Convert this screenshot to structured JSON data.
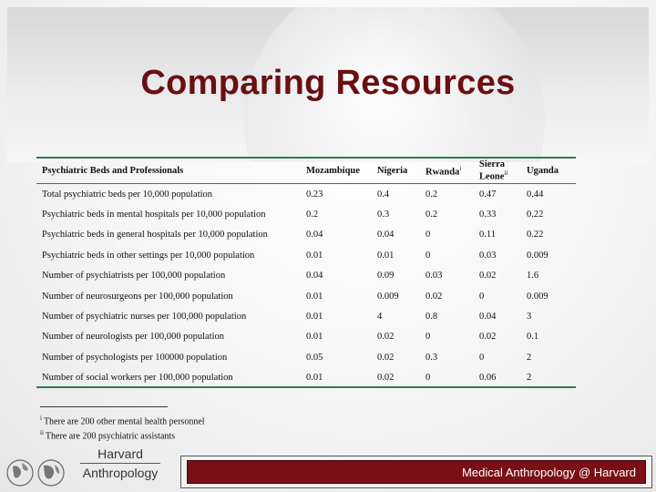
{
  "slide": {
    "title": "Comparing Resources"
  },
  "table": {
    "headers": [
      "Psychiatric Beds and Professionals",
      "Mozambique",
      "Nigeria",
      "Rwanda",
      "Sierra Leone",
      "Uganda"
    ],
    "rwanda_sup": "i",
    "sierra_sup": "ii",
    "rows": [
      [
        "Total psychiatric beds per 10,000 population",
        "0.23",
        "0.4",
        "0.2",
        "0.47",
        "0.44"
      ],
      [
        "Psychiatric beds in mental hospitals per 10,000 population",
        "0.2",
        "0.3",
        "0.2",
        "0.33",
        "0.22"
      ],
      [
        "Psychiatric beds in general hospitals per 10,000 population",
        "0.04",
        "0.04",
        "0",
        "0.11",
        "0.22"
      ],
      [
        "Psychiatric beds in other settings per 10,000 population",
        "0.01",
        "0.01",
        "0",
        "0.03",
        "0.009"
      ],
      [
        "Number of psychiatrists per 100,000 population",
        "0.04",
        "0.09",
        "0.03",
        "0.02",
        "1.6"
      ],
      [
        "Number of neurosurgeons per 100,000 population",
        "0.01",
        "0.009",
        "0.02",
        "0",
        "0.009"
      ],
      [
        "Number of psychiatric nurses per 100,000 population",
        "0.01",
        "4",
        "0.8",
        "0.04",
        "3"
      ],
      [
        "Number of neurologists per 100,000 population",
        "0.01",
        "0.02",
        "0",
        "0.02",
        "0.1"
      ],
      [
        "Number of psychologists per 100000 population",
        "0.05",
        "0.02",
        "0.3",
        "0",
        "2"
      ],
      [
        "Number of social workers per 100,000 population",
        "0.01",
        "0.02",
        "0",
        "0.06",
        "2"
      ]
    ]
  },
  "footnotes": [
    {
      "mark": "i",
      "text": "There are 200 other mental health personnel"
    },
    {
      "mark": "ii",
      "text": "There are 200 psychiatric assistants"
    }
  ],
  "footer": {
    "brand_line1": "Harvard",
    "brand_line2": "Anthropology",
    "text": "Medical Anthropology @ Harvard",
    "colors": {
      "title": "#6b0f12",
      "footer_bar": "#7a1016",
      "table_rule": "#2e7d4f"
    }
  }
}
